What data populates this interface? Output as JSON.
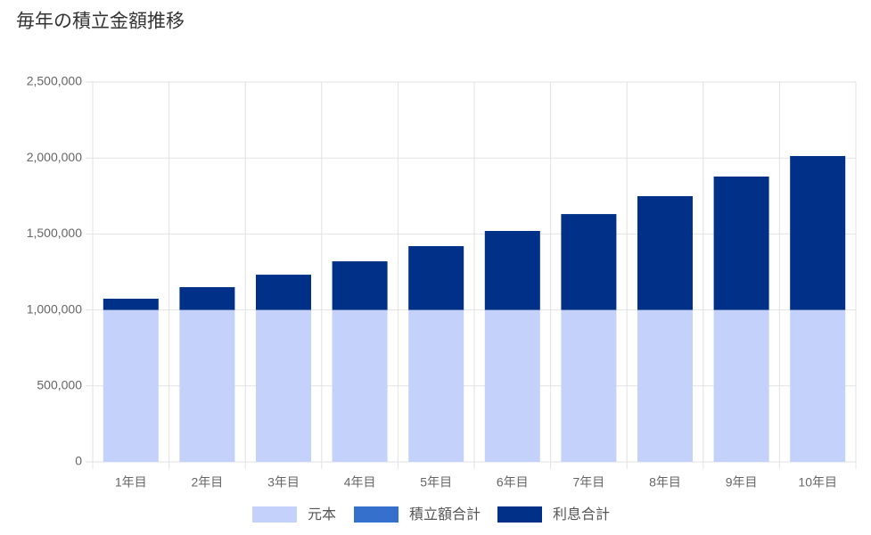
{
  "chart_data": {
    "type": "stacked_bar",
    "title": "毎年の積立金額推移",
    "categories": [
      "1年目",
      "2年目",
      "3年目",
      "4年目",
      "5年目",
      "6年目",
      "7年目",
      "8年目",
      "9年目",
      "10年目"
    ],
    "series": [
      {
        "name": "元本",
        "color": "#c4d1fa",
        "values": [
          1000000,
          1000000,
          1000000,
          1000000,
          1000000,
          1000000,
          1000000,
          1000000,
          1000000,
          1000000
        ]
      },
      {
        "name": "積立額合計",
        "color": "#3570cc",
        "values": [
          0,
          0,
          0,
          0,
          0,
          0,
          0,
          0,
          0,
          0
        ]
      },
      {
        "name": "利息合計",
        "color": "#003087",
        "values": [
          74000,
          150000,
          232000,
          320000,
          420000,
          520000,
          631000,
          749000,
          878000,
          1013000
        ]
      }
    ],
    "ylim": [
      0,
      2500000
    ],
    "yticks": [
      0,
      {
        "value": 500000,
        "label": "500,000"
      },
      {
        "value": 1000000,
        "label": "1,000,000"
      },
      {
        "value": 1500000,
        "label": "1,500,000"
      },
      {
        "value": 2000000,
        "label": "2,000,000"
      },
      {
        "value": 2500000,
        "label": "2,500,000"
      }
    ],
    "grid": true,
    "legend": "bottom"
  }
}
